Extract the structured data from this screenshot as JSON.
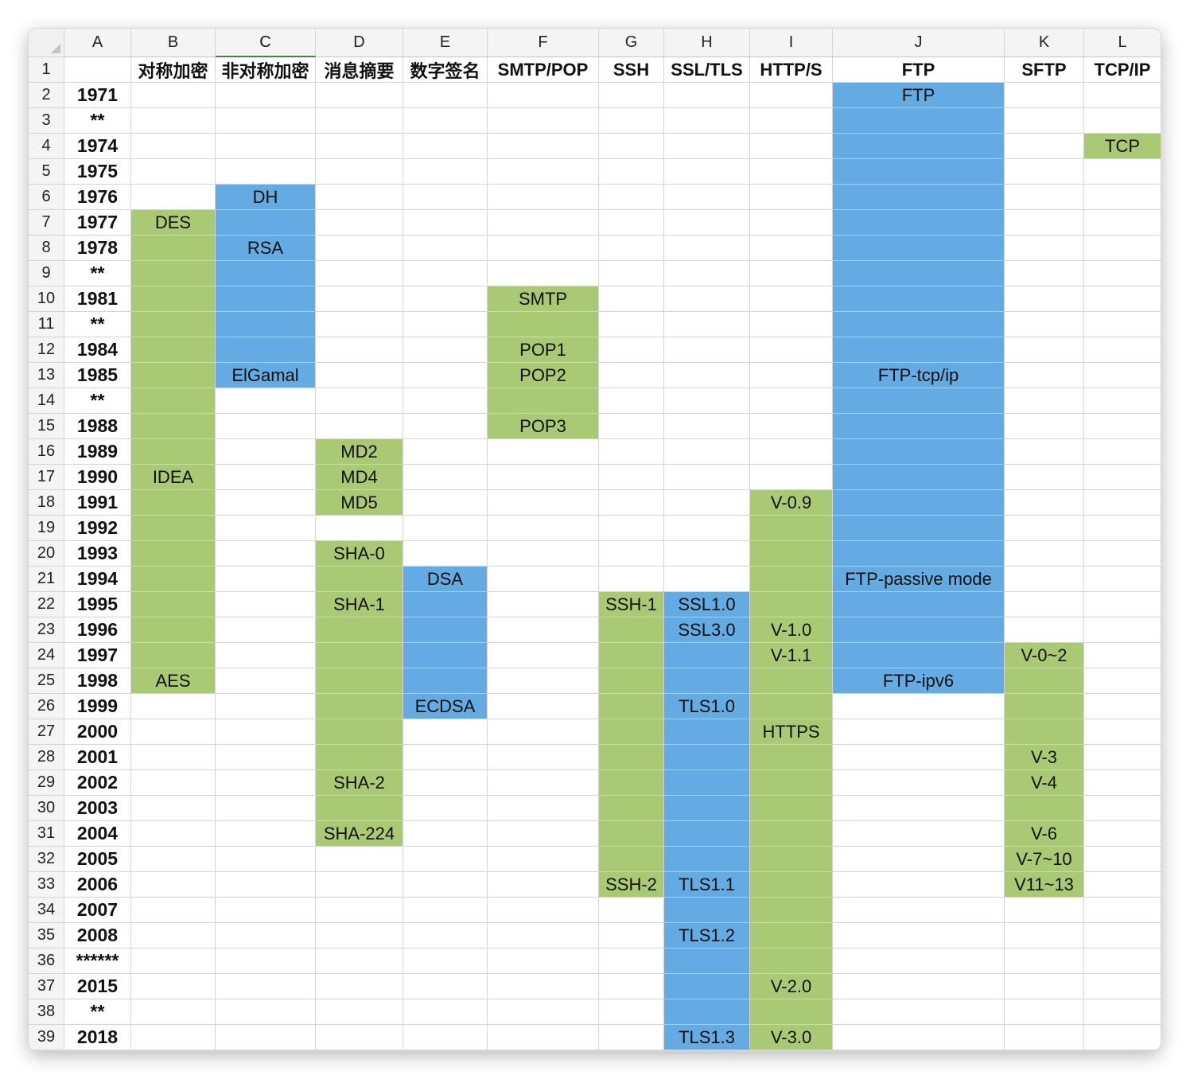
{
  "colors": {
    "green": "#a9c974",
    "blue": "#64abe3"
  },
  "columns": [
    "A",
    "B",
    "C",
    "D",
    "E",
    "F",
    "G",
    "H",
    "I",
    "J",
    "K",
    "L"
  ],
  "active_column": "C",
  "row_numbers": [
    "1",
    "2",
    "3",
    "4",
    "5",
    "6",
    "7",
    "8",
    "9",
    "10",
    "11",
    "12",
    "13",
    "14",
    "15",
    "16",
    "17",
    "18",
    "19",
    "20",
    "21",
    "22",
    "23",
    "24",
    "25",
    "26",
    "27",
    "28",
    "29",
    "30",
    "31",
    "32",
    "33",
    "34",
    "35",
    "36",
    "37",
    "38",
    "39"
  ],
  "headers": [
    "",
    "对称加密",
    "非对称加密",
    "消息摘要",
    "数字签名",
    "SMTP/POP",
    "SSH",
    "SSL/TLS",
    "HTTP/S",
    "FTP",
    "SFTP",
    "TCP/IP"
  ],
  "years": [
    "1971",
    "**",
    "1974",
    "1975",
    "1976",
    "1977",
    "1978",
    "**",
    "1981",
    "**",
    "1984",
    "1985",
    "**",
    "1988",
    "1989",
    "1990",
    "1991",
    "1992",
    "1993",
    "1994",
    "1995",
    "1996",
    "1997",
    "1998",
    "1999",
    "2000",
    "2001",
    "2002",
    "2003",
    "2004",
    "2005",
    "2006",
    "2007",
    "2008",
    "******",
    "2015",
    "**",
    "2018"
  ],
  "cells": [
    {
      "col": "B",
      "rows": [
        7,
        25
      ],
      "color": "green",
      "labels": [
        {
          "row": 7,
          "text": "DES"
        },
        {
          "row": 17,
          "text": "IDEA"
        },
        {
          "row": 25,
          "text": "AES"
        }
      ]
    },
    {
      "col": "C",
      "rows": [
        6,
        13
      ],
      "color": "blue",
      "labels": [
        {
          "row": 6,
          "text": "DH"
        },
        {
          "row": 8,
          "text": "RSA"
        },
        {
          "row": 13,
          "text": "ElGamal"
        }
      ]
    },
    {
      "col": "D",
      "rows": [
        16,
        18
      ],
      "color": "green",
      "labels": [
        {
          "row": 16,
          "text": "MD2"
        },
        {
          "row": 17,
          "text": "MD4"
        },
        {
          "row": 18,
          "text": "MD5"
        }
      ]
    },
    {
      "col": "D",
      "rows": [
        20,
        31
      ],
      "color": "green",
      "labels": [
        {
          "row": 20,
          "text": "SHA-0"
        },
        {
          "row": 22,
          "text": "SHA-1"
        },
        {
          "row": 29,
          "text": "SHA-2"
        },
        {
          "row": 31,
          "text": "SHA-224"
        }
      ]
    },
    {
      "col": "E",
      "rows": [
        21,
        26
      ],
      "color": "blue",
      "labels": [
        {
          "row": 21,
          "text": "DSA"
        },
        {
          "row": 26,
          "text": "ECDSA"
        }
      ]
    },
    {
      "col": "F",
      "rows": [
        10,
        15
      ],
      "color": "green",
      "labels": [
        {
          "row": 10,
          "text": "SMTP"
        },
        {
          "row": 12,
          "text": "POP1"
        },
        {
          "row": 13,
          "text": "POP2"
        },
        {
          "row": 15,
          "text": "POP3"
        }
      ]
    },
    {
      "col": "G",
      "rows": [
        22,
        33
      ],
      "color": "green",
      "labels": [
        {
          "row": 22,
          "text": "SSH-1"
        },
        {
          "row": 33,
          "text": "SSH-2"
        }
      ]
    },
    {
      "col": "H",
      "rows": [
        22,
        39
      ],
      "color": "blue",
      "labels": [
        {
          "row": 22,
          "text": "SSL1.0"
        },
        {
          "row": 23,
          "text": "SSL3.0"
        },
        {
          "row": 26,
          "text": "TLS1.0"
        },
        {
          "row": 33,
          "text": "TLS1.1"
        },
        {
          "row": 35,
          "text": "TLS1.2"
        },
        {
          "row": 39,
          "text": "TLS1.3"
        }
      ]
    },
    {
      "col": "I",
      "rows": [
        18,
        39
      ],
      "color": "green",
      "labels": [
        {
          "row": 18,
          "text": "V-0.9"
        },
        {
          "row": 23,
          "text": "V-1.0"
        },
        {
          "row": 24,
          "text": "V-1.1"
        },
        {
          "row": 27,
          "text": "HTTPS"
        },
        {
          "row": 37,
          "text": "V-2.0"
        },
        {
          "row": 39,
          "text": "V-3.0"
        }
      ]
    },
    {
      "col": "J",
      "rows": [
        2,
        25
      ],
      "color": "blue",
      "labels": [
        {
          "row": 2,
          "text": "FTP"
        },
        {
          "row": 13,
          "text": "FTP-tcp/ip"
        },
        {
          "row": 21,
          "text": "FTP-passive mode"
        },
        {
          "row": 25,
          "text": "FTP-ipv6"
        }
      ]
    },
    {
      "col": "K",
      "rows": [
        24,
        33
      ],
      "color": "green",
      "labels": [
        {
          "row": 24,
          "text": "V-0~2"
        },
        {
          "row": 28,
          "text": "V-3"
        },
        {
          "row": 29,
          "text": "V-4"
        },
        {
          "row": 31,
          "text": "V-6"
        },
        {
          "row": 32,
          "text": "V-7~10"
        },
        {
          "row": 33,
          "text": "V11~13"
        }
      ]
    },
    {
      "col": "L",
      "rows": [
        4,
        4
      ],
      "color": "green",
      "labels": [
        {
          "row": 4,
          "text": "TCP"
        }
      ]
    }
  ]
}
